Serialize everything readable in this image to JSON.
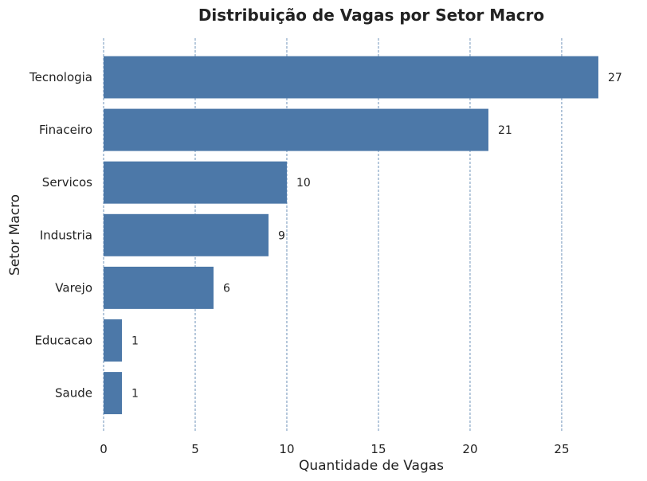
{
  "chart_data": {
    "type": "bar",
    "orientation": "horizontal",
    "title": "Distribuição de Vagas por Setor Macro",
    "xlabel": "Quantidade de Vagas",
    "ylabel": "Setor Macro",
    "categories": [
      "Tecnologia",
      "Finaceiro",
      "Servicos",
      "Industria",
      "Varejo",
      "Educacao",
      "Saude"
    ],
    "values": [
      27,
      21,
      10,
      9,
      6,
      1,
      1
    ],
    "data_labels": [
      "27",
      "21",
      "10",
      "9",
      "6",
      "1",
      "1"
    ],
    "xlim": [
      0,
      28.35
    ],
    "x_ticks": [
      0,
      5,
      10,
      15,
      20,
      25
    ],
    "x_tick_labels": [
      "0",
      "5",
      "10",
      "15",
      "20",
      "25"
    ],
    "grid": "vertical dashed",
    "bar_color": "#4c78a8",
    "grid_color": "#4a78a8"
  }
}
